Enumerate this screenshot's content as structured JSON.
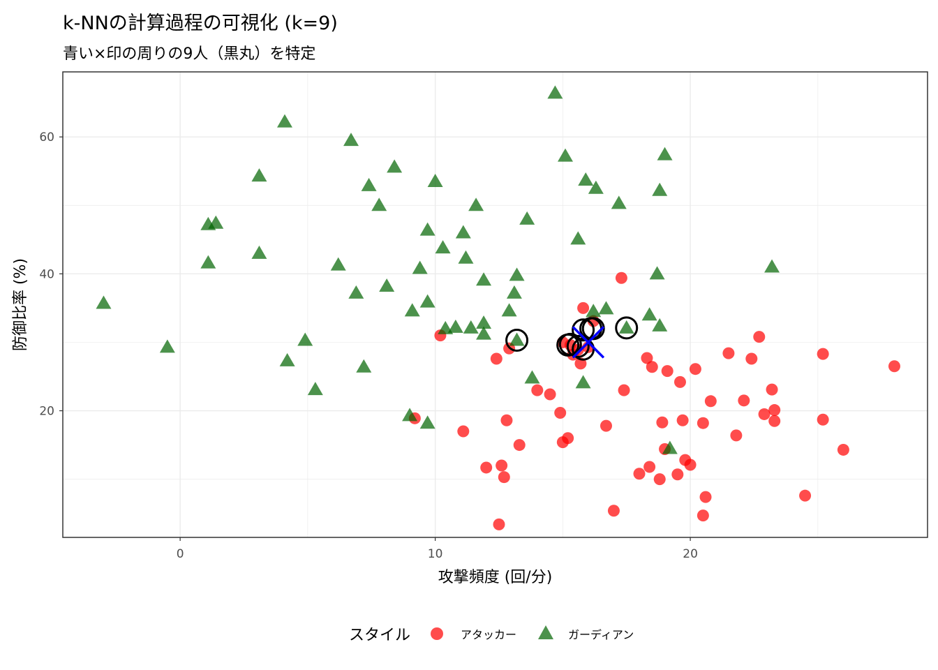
{
  "chart_data": {
    "type": "scatter",
    "title": "k-NNの計算過程の可視化 (k=9)",
    "subtitle": "青い×印の周りの9人（黒丸）を特定",
    "xlabel": "攻撃頻度 (回/分)",
    "ylabel": "防御比率 (%)",
    "xlim": [
      -4.6,
      29.3
    ],
    "ylim": [
      1.5,
      69.5
    ],
    "x_ticks": [
      0,
      10,
      20
    ],
    "y_ticks": [
      20,
      40,
      60
    ],
    "x_tick_labels": [
      "0",
      "10",
      "20"
    ],
    "y_tick_labels": [
      "20",
      "40",
      "60"
    ],
    "grid": true,
    "legend": {
      "title": "スタイル",
      "position": "bottom"
    },
    "colors": {
      "attacker": "#ff0000",
      "guardian": "#006400",
      "query": "#0000ff",
      "neighbor": "#000000"
    },
    "series": [
      {
        "name": "アタッカー",
        "marker": "circle",
        "points": [
          [
            10.2,
            31.0
          ],
          [
            12.4,
            27.6
          ],
          [
            12.9,
            29.1
          ],
          [
            15.3,
            29.6
          ],
          [
            15.6,
            28.9
          ],
          [
            15.8,
            35.0
          ],
          [
            15.7,
            26.9
          ],
          [
            16.0,
            29.3
          ],
          [
            17.3,
            39.4
          ],
          [
            15.0,
            30.0
          ],
          [
            15.4,
            28.2
          ],
          [
            16.2,
            33.1
          ],
          [
            14.0,
            23.0
          ],
          [
            14.5,
            22.4
          ],
          [
            14.9,
            19.7
          ],
          [
            17.4,
            23.0
          ],
          [
            16.7,
            17.8
          ],
          [
            15.0,
            15.4
          ],
          [
            15.2,
            16.0
          ],
          [
            13.3,
            15.0
          ],
          [
            11.1,
            17.0
          ],
          [
            12.8,
            18.6
          ],
          [
            9.2,
            18.9
          ],
          [
            12.0,
            11.7
          ],
          [
            12.6,
            12.0
          ],
          [
            12.7,
            10.3
          ],
          [
            12.5,
            3.4
          ],
          [
            17.0,
            5.4
          ],
          [
            18.3,
            27.7
          ],
          [
            18.5,
            26.4
          ],
          [
            19.1,
            25.8
          ],
          [
            19.6,
            24.2
          ],
          [
            20.2,
            26.1
          ],
          [
            18.9,
            18.3
          ],
          [
            19.7,
            18.6
          ],
          [
            20.5,
            18.2
          ],
          [
            20.8,
            21.4
          ],
          [
            19.0,
            14.4
          ],
          [
            19.8,
            12.8
          ],
          [
            20.0,
            12.1
          ],
          [
            18.0,
            10.8
          ],
          [
            18.4,
            11.8
          ],
          [
            18.8,
            10.0
          ],
          [
            19.5,
            10.7
          ],
          [
            20.6,
            7.4
          ],
          [
            20.5,
            4.7
          ],
          [
            21.5,
            28.4
          ],
          [
            22.4,
            27.6
          ],
          [
            22.7,
            30.8
          ],
          [
            23.2,
            23.1
          ],
          [
            22.1,
            21.5
          ],
          [
            21.8,
            16.4
          ],
          [
            22.9,
            19.5
          ],
          [
            23.3,
            20.1
          ],
          [
            23.3,
            18.5
          ],
          [
            24.5,
            7.6
          ],
          [
            25.2,
            28.3
          ],
          [
            25.2,
            18.7
          ],
          [
            26.0,
            14.3
          ],
          [
            28.0,
            26.5
          ]
        ]
      },
      {
        "name": "ガーディアン",
        "marker": "triangle",
        "points": [
          [
            -3.0,
            35.7
          ],
          [
            -0.5,
            29.3
          ],
          [
            1.1,
            47.2
          ],
          [
            1.4,
            47.4
          ],
          [
            1.1,
            41.6
          ],
          [
            3.1,
            54.3
          ],
          [
            3.1,
            43.0
          ],
          [
            4.1,
            62.2
          ],
          [
            4.2,
            27.3
          ],
          [
            4.9,
            30.3
          ],
          [
            5.3,
            23.1
          ],
          [
            6.2,
            41.3
          ],
          [
            6.7,
            59.5
          ],
          [
            6.9,
            37.2
          ],
          [
            7.2,
            26.4
          ],
          [
            7.4,
            52.9
          ],
          [
            7.8,
            50.0
          ],
          [
            8.1,
            38.2
          ],
          [
            8.4,
            55.6
          ],
          [
            9.0,
            19.3
          ],
          [
            9.4,
            40.8
          ],
          [
            9.1,
            34.6
          ],
          [
            9.7,
            46.4
          ],
          [
            9.7,
            35.9
          ],
          [
            9.7,
            18.2
          ],
          [
            10.0,
            53.5
          ],
          [
            10.3,
            43.8
          ],
          [
            10.4,
            32.0
          ],
          [
            10.8,
            32.2
          ],
          [
            11.1,
            46.0
          ],
          [
            11.2,
            42.3
          ],
          [
            11.4,
            32.1
          ],
          [
            11.6,
            50.0
          ],
          [
            11.9,
            39.1
          ],
          [
            11.9,
            32.8
          ],
          [
            11.9,
            31.2
          ],
          [
            12.9,
            34.6
          ],
          [
            13.1,
            37.2
          ],
          [
            13.2,
            39.8
          ],
          [
            13.2,
            30.3
          ],
          [
            13.6,
            48.0
          ],
          [
            13.8,
            24.8
          ],
          [
            14.7,
            66.4
          ],
          [
            15.1,
            57.2
          ],
          [
            15.6,
            45.1
          ],
          [
            15.8,
            24.1
          ],
          [
            15.9,
            53.7
          ],
          [
            16.2,
            34.5
          ],
          [
            16.3,
            52.5
          ],
          [
            16.7,
            34.9
          ],
          [
            17.2,
            50.3
          ],
          [
            17.5,
            32.1
          ],
          [
            18.4,
            34.0
          ],
          [
            18.7,
            40.0
          ],
          [
            18.8,
            32.4
          ],
          [
            18.8,
            52.2
          ],
          [
            19.0,
            57.4
          ],
          [
            19.2,
            14.5
          ],
          [
            23.2,
            41.0
          ]
        ]
      }
    ],
    "query_point": {
      "label": "×",
      "x": 16.0,
      "y": 30.0
    },
    "neighbors": [
      [
        13.2,
        30.3
      ],
      [
        15.2,
        29.6
      ],
      [
        15.3,
        29.7
      ],
      [
        15.8,
        31.8
      ],
      [
        15.8,
        29.0
      ],
      [
        16.1,
        32.0
      ],
      [
        16.2,
        32.0
      ],
      [
        17.5,
        32.1
      ],
      [
        15.6,
        29.4
      ]
    ],
    "legend_entries": [
      "アタッカー",
      "ガーディアン"
    ]
  }
}
